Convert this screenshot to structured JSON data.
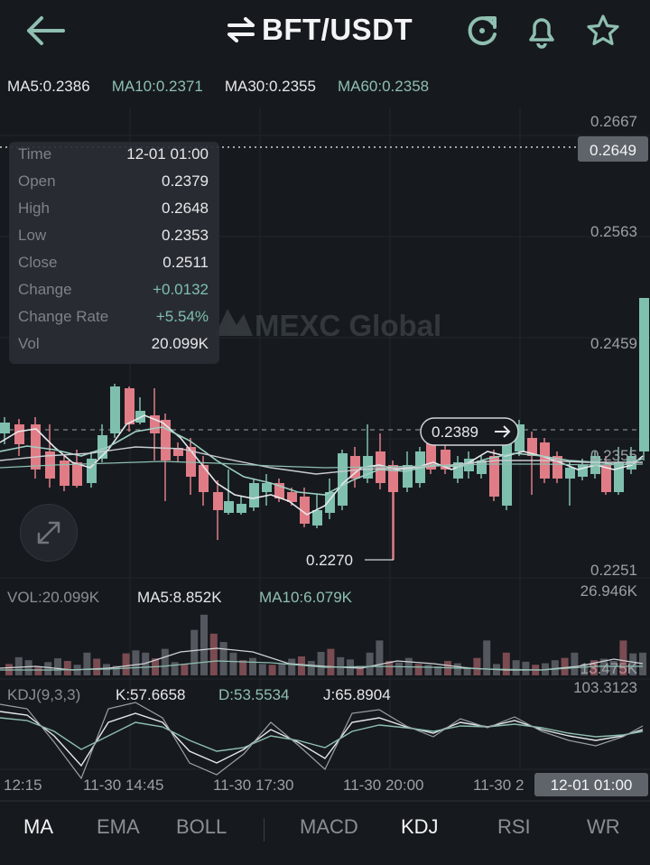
{
  "header": {
    "title": "BFT/USDT",
    "back_icon": "arrow-left-icon",
    "swap_icon": "swap-arrows-icon",
    "refresh_icon": "refresh-icon",
    "alert_icon": "bell-icon",
    "favorite_icon": "star-icon"
  },
  "ma_indicators": [
    {
      "label": "MA5:0.2386",
      "color": "#e6e8ea"
    },
    {
      "label": "MA10:0.2371",
      "color": "#8fbfb0"
    },
    {
      "label": "MA30:0.2355",
      "color": "#e6e8ea"
    },
    {
      "label": "MA60:0.2358",
      "color": "#8fbfb0"
    }
  ],
  "tooltip": {
    "rows": [
      {
        "k": "Time",
        "v": "12-01 01:00"
      },
      {
        "k": "Open",
        "v": "0.2379"
      },
      {
        "k": "High",
        "v": "0.2648"
      },
      {
        "k": "Low",
        "v": "0.2353"
      },
      {
        "k": "Close",
        "v": "0.2511"
      },
      {
        "k": "Change",
        "v": "+0.0132",
        "pos": true
      },
      {
        "k": "Change Rate",
        "v": "+5.54%",
        "pos": true
      },
      {
        "k": "Vol",
        "v": "20.099K"
      }
    ]
  },
  "watermark": "MEXC Global",
  "price_axis": [
    "0.2667",
    "0.2563",
    "0.2459",
    "0.2355",
    "0.2251"
  ],
  "crosshair_price": "0.2649",
  "current_price_tag": "0.2389",
  "low_marker": "0.2270",
  "volume": {
    "vol": "VOL:20.099K",
    "ma5": "MA5:8.852K",
    "ma10": "MA10:6.079K",
    "max": "26.946K",
    "mid": "13.475K"
  },
  "kdj": {
    "label": "KDJ(9,3,3)",
    "k": "K:57.6658",
    "d": "D:53.5534",
    "j": "J:65.8904",
    "max": "103.3123"
  },
  "time_axis": [
    "12:15",
    "11-30 14:45",
    "11-30 17:30",
    "11-30 20:00",
    "11-30 2"
  ],
  "time_cursor": "12-01 01:00",
  "colors": {
    "up": "#7fbfae",
    "down": "#e07c86",
    "background": "#161a1f"
  },
  "tabs": [
    "MA",
    "EMA",
    "BOLL",
    "MACD",
    "KDJ",
    "RSI",
    "WR"
  ]
}
